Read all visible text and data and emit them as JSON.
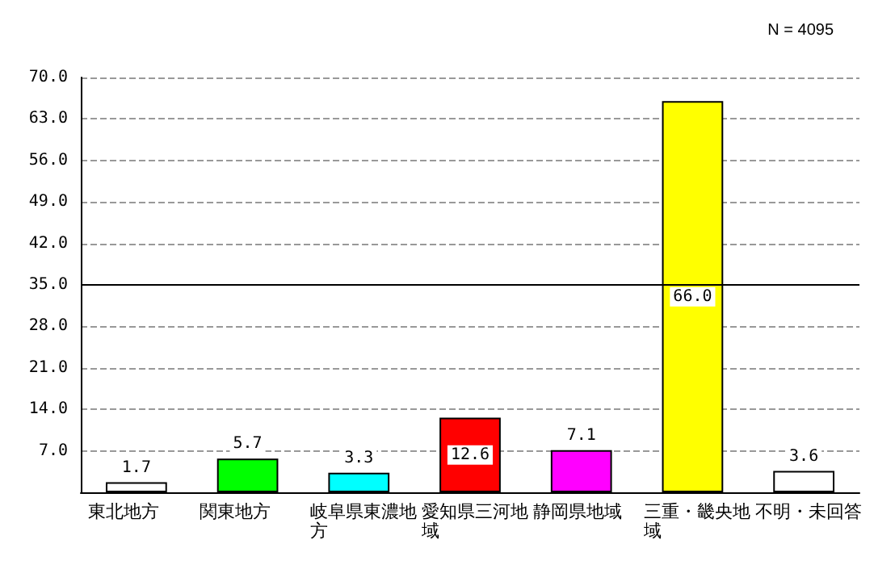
{
  "chart_data": {
    "type": "bar",
    "annotations": [
      "N = 4095"
    ],
    "categories": [
      "東北地方",
      "関東地方",
      "岐阜県東濃地方",
      "愛知県三河地域",
      "静岡県地域",
      "三重・畿央地域",
      "不明・未回答"
    ],
    "values": [
      1.7,
      5.7,
      3.3,
      12.6,
      7.1,
      66.0,
      3.6
    ],
    "colors": [
      "#ffffff",
      "#00ff00",
      "#00ffff",
      "#ff0000",
      "#ff00ff",
      "#ffff00",
      "#ffffff"
    ],
    "value_labels": [
      "1.7",
      "5.7",
      "3.3",
      "12.6",
      "7.1",
      "66.0",
      "3.6"
    ],
    "ylim": [
      0,
      70
    ],
    "yticks": [
      {
        "value": 0,
        "label": null
      },
      {
        "value": 7,
        "label": "7.0"
      },
      {
        "value": 14,
        "label": "14.0"
      },
      {
        "value": 21,
        "label": "21.0"
      },
      {
        "value": 28,
        "label": "28.0"
      },
      {
        "value": 35,
        "label": "35.0"
      },
      {
        "value": 42,
        "label": "42.0"
      },
      {
        "value": 49,
        "label": "49.0"
      },
      {
        "value": 56,
        "label": "56.0"
      },
      {
        "value": 63,
        "label": "63.0"
      },
      {
        "value": 70,
        "label": "70.0"
      }
    ],
    "grid": "y",
    "ref_lines": [
      {
        "axis": "y",
        "value": 35,
        "color": "#000000",
        "line_style": "solid"
      }
    ]
  }
}
